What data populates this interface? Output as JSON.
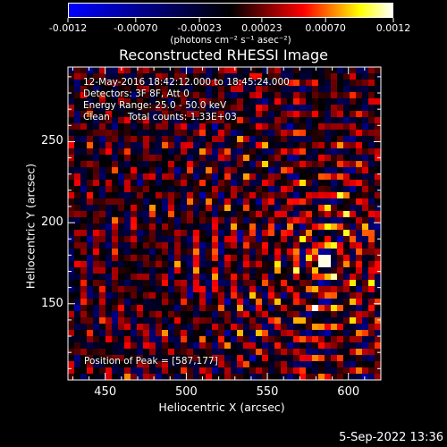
{
  "colorbar": {
    "ticks": [
      "-0.0012",
      "-0.00070",
      "-0.00023",
      "0.00023",
      "0.00070",
      "0.0012"
    ],
    "tick_values": [
      -0.0012,
      -0.0007,
      -0.00023,
      0.00023,
      0.0007,
      0.0012
    ],
    "unit_label": "(photons cm⁻² s⁻¹ asec⁻²)",
    "colormap": "rhessi-blue-black-red-yellow-white",
    "colors": [
      "#0000ff",
      "#000000",
      "#ff0000",
      "#ffff00",
      "#ffffff"
    ]
  },
  "image_title": "Reconstructed RHESSI Image",
  "info": {
    "line1": "12-May-2016 18:42:12.000 to 18:45:24.000",
    "line2": "Detectors: 3F 8F, Att 0",
    "line3": "Energy Range: 25.0 - 50.0 keV",
    "line4": "Clean      Total counts: 1.33E+03"
  },
  "peak_label": "Position of Peak = [587,177]",
  "timestamp": "5-Sep-2022 13:36",
  "chart_data": {
    "type": "heatmap",
    "title": "Reconstructed RHESSI Image",
    "xlabel": "Heliocentric X (arcsec)",
    "ylabel": "Heliocentric Y (arcsec)",
    "x_ticks": [
      450,
      500,
      550,
      600
    ],
    "y_ticks": [
      150,
      200,
      250
    ],
    "xlim": [
      427,
      620
    ],
    "ylim": [
      103,
      296
    ],
    "vmin": -0.0012,
    "vmax": 0.0012,
    "peak_position": [
      587,
      177
    ],
    "grid": false
  }
}
